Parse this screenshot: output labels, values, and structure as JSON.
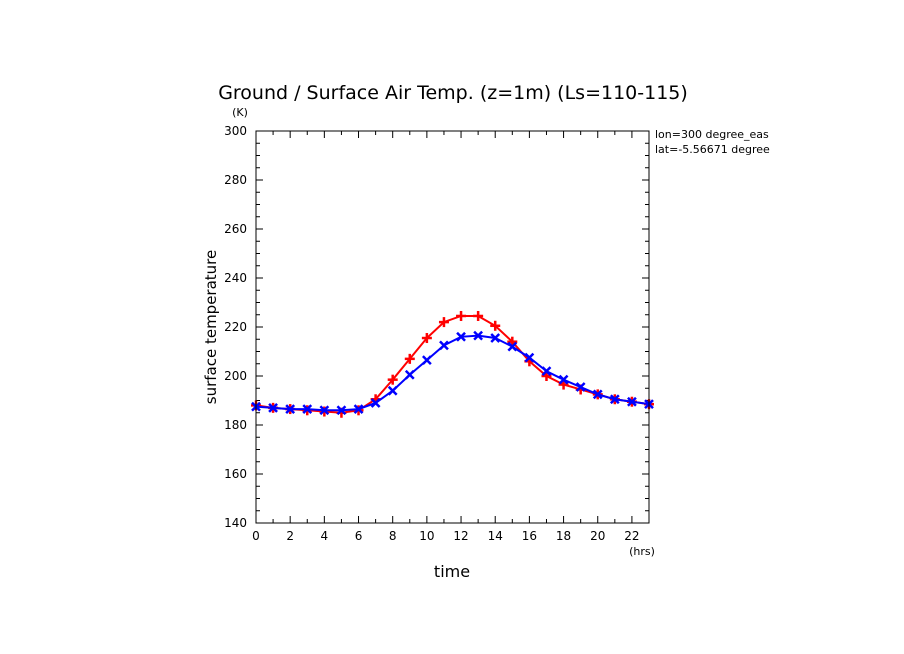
{
  "chart_data": {
    "type": "line",
    "title": "Ground / Surface Air Temp. (z=1m) (Ls=110-115)",
    "xlabel": "time",
    "ylabel": "surface temperature",
    "x_unit": "(hrs)",
    "y_unit": "(K)",
    "xlim": [
      0,
      23
    ],
    "ylim": [
      140,
      300
    ],
    "x_ticks": [
      0,
      2,
      4,
      6,
      8,
      10,
      12,
      14,
      16,
      18,
      20,
      22
    ],
    "y_ticks": [
      140,
      160,
      180,
      200,
      220,
      240,
      260,
      280,
      300
    ],
    "annotations": [
      "lon=300 degree_eas",
      "lat=-5.56671 degree"
    ],
    "x": [
      0,
      1,
      2,
      3,
      4,
      5,
      6,
      7,
      8,
      9,
      10,
      11,
      12,
      13,
      14,
      15,
      16,
      17,
      18,
      19,
      20,
      21,
      22,
      23
    ],
    "series": [
      {
        "color": "#ff0000",
        "marker": "plus",
        "values": [
          188,
          187,
          186.5,
          186,
          185.5,
          185,
          186,
          190.5,
          198.5,
          207,
          215.5,
          222,
          224.5,
          224.5,
          220.5,
          214,
          206,
          200,
          196.5,
          194.5,
          192.5,
          190.5,
          189.5,
          188.5
        ]
      },
      {
        "color": "#0000ff",
        "marker": "x",
        "values": [
          187.5,
          187,
          186.5,
          186.5,
          186,
          186,
          186.5,
          189,
          194,
          200.5,
          206.5,
          212.5,
          216,
          216.5,
          215.5,
          212,
          207.5,
          202,
          198.5,
          195.5,
          192.5,
          190.5,
          189.5,
          188.5
        ]
      }
    ]
  }
}
